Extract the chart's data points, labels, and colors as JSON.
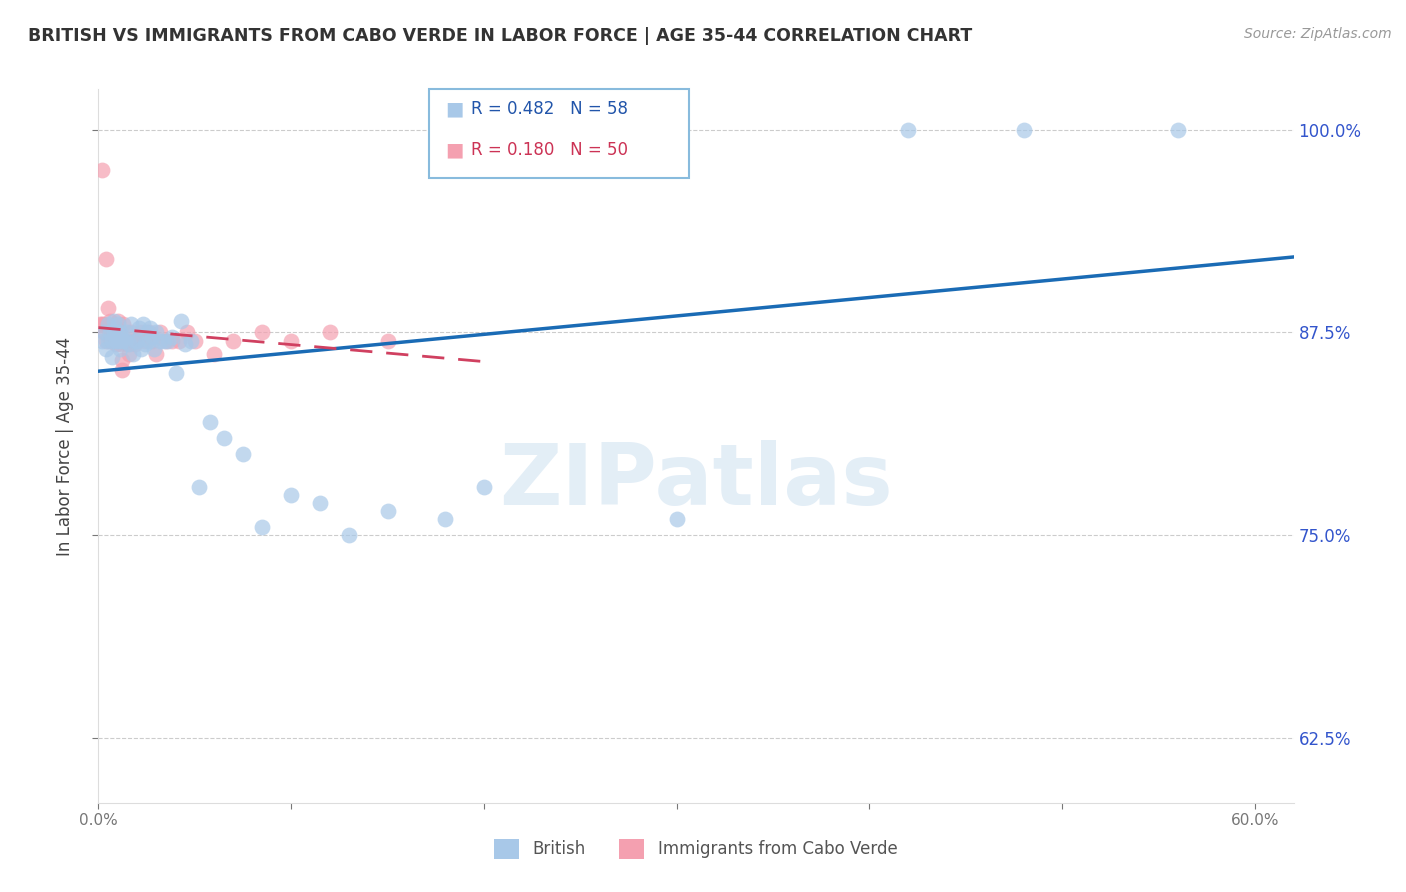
{
  "title": "BRITISH VS IMMIGRANTS FROM CABO VERDE IN LABOR FORCE | AGE 35-44 CORRELATION CHART",
  "source": "Source: ZipAtlas.com",
  "ylabel": "In Labor Force | Age 35-44",
  "legend_labels": [
    "British",
    "Immigrants from Cabo Verde"
  ],
  "british_R": 0.482,
  "british_N": 58,
  "caboverde_R": 0.18,
  "caboverde_N": 50,
  "watermark": "ZIPatlas",
  "british_color": "#a8c8e8",
  "british_line_color": "#1a6bb5",
  "caboverde_color": "#f4a0b0",
  "caboverde_line_color": "#d04060",
  "british_x": [
    0.002,
    0.003,
    0.004,
    0.005,
    0.005,
    0.006,
    0.007,
    0.007,
    0.008,
    0.008,
    0.009,
    0.009,
    0.01,
    0.01,
    0.011,
    0.011,
    0.012,
    0.013,
    0.014,
    0.015,
    0.016,
    0.017,
    0.018,
    0.019,
    0.02,
    0.021,
    0.022,
    0.023,
    0.024,
    0.025,
    0.026,
    0.027,
    0.028,
    0.029,
    0.03,
    0.032,
    0.034,
    0.036,
    0.038,
    0.04,
    0.043,
    0.045,
    0.048,
    0.052,
    0.058,
    0.065,
    0.075,
    0.085,
    0.1,
    0.115,
    0.13,
    0.15,
    0.18,
    0.2,
    0.3,
    0.42,
    0.48,
    0.56
  ],
  "british_y": [
    0.87,
    0.875,
    0.865,
    0.88,
    0.87,
    0.875,
    0.87,
    0.86,
    0.875,
    0.882,
    0.87,
    0.875,
    0.88,
    0.87,
    0.875,
    0.865,
    0.87,
    0.872,
    0.87,
    0.875,
    0.868,
    0.88,
    0.862,
    0.87,
    0.87,
    0.878,
    0.865,
    0.88,
    0.868,
    0.875,
    0.87,
    0.878,
    0.872,
    0.865,
    0.875,
    0.87,
    0.87,
    0.87,
    0.872,
    0.85,
    0.882,
    0.868,
    0.87,
    0.78,
    0.82,
    0.81,
    0.8,
    0.755,
    0.775,
    0.77,
    0.75,
    0.765,
    0.76,
    0.78,
    0.76,
    1.0,
    1.0,
    1.0
  ],
  "caboverde_x": [
    0.001,
    0.002,
    0.002,
    0.003,
    0.003,
    0.004,
    0.004,
    0.005,
    0.005,
    0.006,
    0.006,
    0.006,
    0.007,
    0.007,
    0.007,
    0.008,
    0.008,
    0.009,
    0.009,
    0.01,
    0.01,
    0.011,
    0.011,
    0.012,
    0.012,
    0.013,
    0.014,
    0.015,
    0.016,
    0.017,
    0.018,
    0.019,
    0.02,
    0.022,
    0.024,
    0.026,
    0.028,
    0.03,
    0.032,
    0.035,
    0.038,
    0.042,
    0.046,
    0.05,
    0.06,
    0.07,
    0.085,
    0.1,
    0.12,
    0.15
  ],
  "caboverde_y": [
    0.88,
    0.975,
    0.88,
    0.88,
    0.875,
    0.92,
    0.87,
    0.89,
    0.878,
    0.882,
    0.878,
    0.87,
    0.878,
    0.875,
    0.87,
    0.875,
    0.87,
    0.878,
    0.868,
    0.882,
    0.875,
    0.868,
    0.875,
    0.858,
    0.852,
    0.88,
    0.87,
    0.868,
    0.862,
    0.875,
    0.87,
    0.868,
    0.87,
    0.875,
    0.87,
    0.875,
    0.87,
    0.862,
    0.875,
    0.87,
    0.87,
    0.87,
    0.875,
    0.87,
    0.862,
    0.87,
    0.875,
    0.87,
    0.875,
    0.87
  ],
  "xlim": [
    0.0,
    0.62
  ],
  "ylim": [
    0.585,
    1.025
  ],
  "yticks": [
    0.625,
    0.75,
    0.875,
    1.0
  ],
  "ytick_labels": [
    "62.5%",
    "75.0%",
    "87.5%",
    "100.0%"
  ],
  "xticks": [
    0.0,
    0.1,
    0.2,
    0.3,
    0.4,
    0.5,
    0.6
  ],
  "xtick_labels": [
    "0.0%",
    "",
    "",
    "",
    "",
    "",
    "60.0%"
  ]
}
